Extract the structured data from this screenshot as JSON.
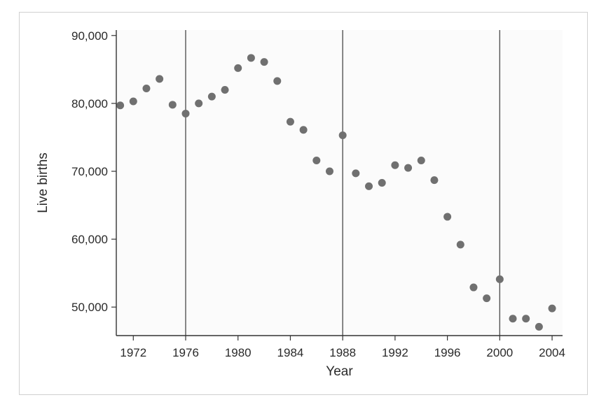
{
  "chart_data": {
    "type": "scatter",
    "title": "",
    "xlabel": "Year",
    "ylabel": "Live births",
    "xlim": [
      1970.7,
      2004.8
    ],
    "ylim": [
      45800,
      90800
    ],
    "x_ticks": [
      1972,
      1976,
      1980,
      1984,
      1988,
      1992,
      1996,
      2000,
      2004
    ],
    "y_ticks": [
      50000,
      60000,
      70000,
      80000,
      90000
    ],
    "x_tick_labels": [
      "1972",
      "1976",
      "1980",
      "1984",
      "1988",
      "1992",
      "1996",
      "2000",
      "2004"
    ],
    "y_tick_labels": [
      "50,000",
      "60,000",
      "70,000",
      "80,000",
      "90,000"
    ],
    "reference_lines_x": [
      1976,
      1988,
      2000
    ],
    "grid": false,
    "colors": {
      "point": "#707070",
      "axis": "#333333",
      "reference_line": "#555555",
      "plot_bg": "#fbfbfb"
    },
    "points": [
      {
        "x": 1971,
        "y": 79700
      },
      {
        "x": 1972,
        "y": 80300
      },
      {
        "x": 1973,
        "y": 82200
      },
      {
        "x": 1974,
        "y": 83600
      },
      {
        "x": 1975,
        "y": 79800
      },
      {
        "x": 1976,
        "y": 78500
      },
      {
        "x": 1977,
        "y": 80000
      },
      {
        "x": 1978,
        "y": 81000
      },
      {
        "x": 1979,
        "y": 82000
      },
      {
        "x": 1980,
        "y": 85200
      },
      {
        "x": 1981,
        "y": 86700
      },
      {
        "x": 1982,
        "y": 86100
      },
      {
        "x": 1983,
        "y": 83300
      },
      {
        "x": 1984,
        "y": 77300
      },
      {
        "x": 1985,
        "y": 76100
      },
      {
        "x": 1986,
        "y": 71600
      },
      {
        "x": 1987,
        "y": 70000
      },
      {
        "x": 1988,
        "y": 75300
      },
      {
        "x": 1989,
        "y": 69700
      },
      {
        "x": 1990,
        "y": 67800
      },
      {
        "x": 1991,
        "y": 68300
      },
      {
        "x": 1992,
        "y": 70900
      },
      {
        "x": 1993,
        "y": 70500
      },
      {
        "x": 1994,
        "y": 71600
      },
      {
        "x": 1995,
        "y": 68700
      },
      {
        "x": 1996,
        "y": 63300
      },
      {
        "x": 1997,
        "y": 59200
      },
      {
        "x": 1998,
        "y": 52900
      },
      {
        "x": 1999,
        "y": 51300
      },
      {
        "x": 2000,
        "y": 54100
      },
      {
        "x": 2001,
        "y": 48300
      },
      {
        "x": 2002,
        "y": 48300
      },
      {
        "x": 2003,
        "y": 47100
      },
      {
        "x": 2004,
        "y": 49800
      }
    ]
  }
}
